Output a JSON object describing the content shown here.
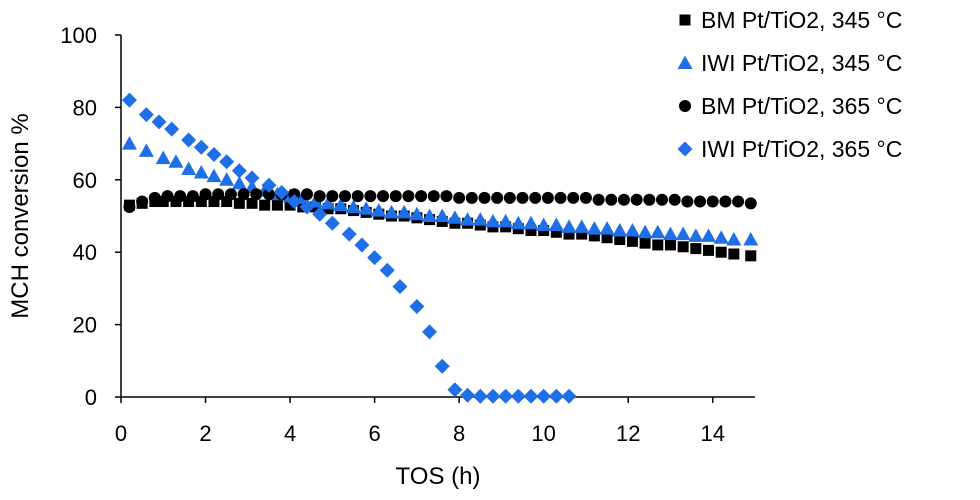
{
  "chart_data": {
    "type": "scatter",
    "xlabel": "TOS (h)",
    "ylabel": "MCH conversion %",
    "xlim": [
      0,
      15
    ],
    "ylim": [
      0,
      100
    ],
    "xticks": [
      0,
      2,
      4,
      6,
      8,
      10,
      12,
      14
    ],
    "yticks": [
      0,
      20,
      40,
      60,
      80,
      100
    ],
    "grid": false,
    "legend_position": "top-right",
    "series": [
      {
        "name": "BM Pt/TiO2, 345 °C",
        "marker": "square",
        "color": "#000000",
        "x": [
          0.2,
          0.5,
          0.8,
          1.0,
          1.3,
          1.6,
          1.9,
          2.2,
          2.5,
          2.8,
          3.1,
          3.4,
          3.7,
          4.0,
          4.3,
          4.6,
          4.9,
          5.2,
          5.5,
          5.8,
          6.1,
          6.4,
          6.7,
          7.0,
          7.3,
          7.6,
          7.9,
          8.2,
          8.5,
          8.8,
          9.1,
          9.4,
          9.7,
          10.0,
          10.3,
          10.6,
          10.9,
          11.2,
          11.5,
          11.8,
          12.1,
          12.4,
          12.7,
          13.0,
          13.3,
          13.6,
          13.9,
          14.2,
          14.5,
          14.9
        ],
        "y": [
          53,
          53.5,
          54,
          54,
          54,
          54,
          54,
          54,
          54,
          53.5,
          53.5,
          53,
          53,
          53,
          52.5,
          52.5,
          52,
          52,
          51.5,
          51,
          50.5,
          50,
          50,
          49.5,
          49,
          48.5,
          48,
          48,
          47.5,
          47,
          47,
          46.5,
          46,
          46,
          45.5,
          45,
          45,
          44.5,
          44,
          43.5,
          43,
          42.5,
          42,
          42,
          41.5,
          41,
          40.5,
          40,
          39.5,
          39
        ]
      },
      {
        "name": "IWI Pt/TiO2, 345 °C",
        "marker": "triangle",
        "color": "#1f6fe6",
        "x": [
          0.2,
          0.6,
          1.0,
          1.3,
          1.6,
          1.9,
          2.2,
          2.5,
          2.8,
          3.1,
          3.4,
          3.7,
          4.0,
          4.3,
          4.6,
          4.9,
          5.2,
          5.5,
          5.8,
          6.1,
          6.4,
          6.7,
          7.0,
          7.3,
          7.6,
          7.9,
          8.2,
          8.5,
          8.8,
          9.1,
          9.4,
          9.7,
          10.0,
          10.3,
          10.6,
          10.9,
          11.2,
          11.5,
          11.8,
          12.1,
          12.4,
          12.7,
          13.0,
          13.3,
          13.6,
          13.9,
          14.2,
          14.5,
          14.9
        ],
        "y": [
          70,
          68,
          66,
          65,
          63,
          62,
          61,
          60,
          59,
          58,
          57,
          56,
          55.5,
          55,
          54,
          53.5,
          53,
          52.5,
          52,
          51.5,
          51,
          51,
          50.5,
          50,
          50,
          49.5,
          49,
          49,
          48.5,
          48.5,
          48,
          48,
          47.5,
          47.5,
          47,
          47,
          46.5,
          46.5,
          46,
          46,
          45.5,
          45.5,
          45,
          45,
          44.5,
          44.5,
          44,
          43.5,
          43.5
        ]
      },
      {
        "name": "BM Pt/TiO2, 365 °C",
        "marker": "circle",
        "color": "#000000",
        "x": [
          0.2,
          0.5,
          0.8,
          1.1,
          1.4,
          1.7,
          2.0,
          2.3,
          2.6,
          2.9,
          3.2,
          3.5,
          3.8,
          4.1,
          4.4,
          4.7,
          5.0,
          5.3,
          5.6,
          5.9,
          6.2,
          6.5,
          6.8,
          7.1,
          7.4,
          7.7,
          8.0,
          8.3,
          8.6,
          8.9,
          9.2,
          9.5,
          9.8,
          10.1,
          10.4,
          10.7,
          11.0,
          11.3,
          11.6,
          11.9,
          12.2,
          12.5,
          12.8,
          13.1,
          13.4,
          13.7,
          14.0,
          14.3,
          14.6,
          14.9
        ],
        "y": [
          52.5,
          54,
          55,
          55.5,
          55.5,
          55.5,
          56,
          56,
          56,
          56,
          56,
          56,
          56,
          56,
          56,
          55.5,
          55.5,
          55.5,
          55.5,
          55.5,
          55.5,
          55.5,
          55.5,
          55.5,
          55.5,
          55.5,
          55,
          55,
          55,
          55,
          55,
          55,
          55,
          55,
          55,
          55,
          55,
          54.5,
          54.5,
          54.5,
          54.5,
          54.5,
          54.5,
          54.5,
          54,
          54,
          54,
          54,
          54,
          53.5
        ]
      },
      {
        "name": "IWI Pt/TiO2, 365 °C",
        "marker": "diamond",
        "color": "#1f6fe6",
        "x": [
          0.2,
          0.6,
          0.9,
          1.2,
          1.6,
          1.9,
          2.2,
          2.5,
          2.8,
          3.1,
          3.5,
          3.8,
          4.1,
          4.4,
          4.7,
          5.0,
          5.4,
          5.7,
          6.0,
          6.3,
          6.6,
          7.0,
          7.3,
          7.6,
          7.9,
          8.2,
          8.5,
          8.8,
          9.1,
          9.4,
          9.7,
          10.0,
          10.3,
          10.6
        ],
        "y": [
          82,
          78,
          76,
          74,
          71,
          69,
          67,
          65,
          62.5,
          60.5,
          58.5,
          56.5,
          54,
          52.5,
          50.5,
          48,
          45,
          42,
          38.5,
          35,
          30.5,
          25,
          18,
          8.5,
          2,
          0.5,
          0.2,
          0.2,
          0.2,
          0.2,
          0.2,
          0.2,
          0.2,
          0.2
        ]
      }
    ]
  }
}
